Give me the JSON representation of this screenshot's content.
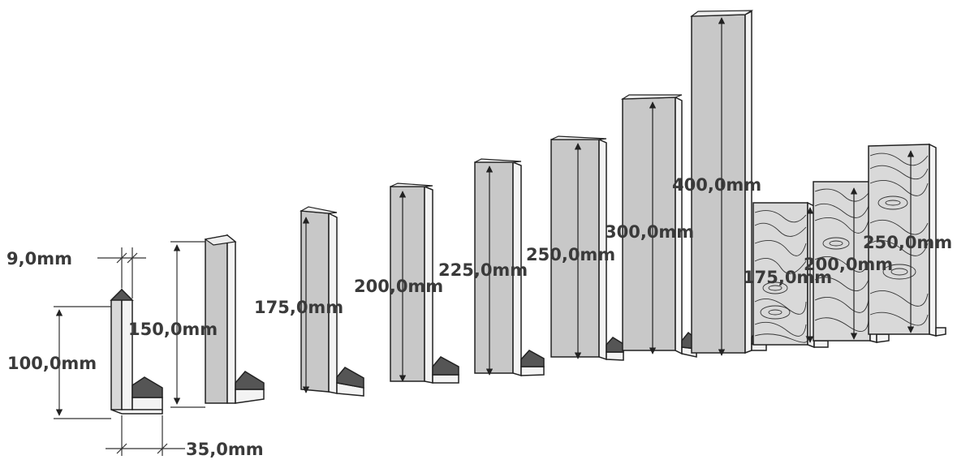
{
  "dimensions": {
    "thickness": "9,0mm",
    "base_width": "35,0mm",
    "heights": [
      "100,0mm",
      "150,0mm",
      "175,0mm",
      "200,0mm",
      "225,0mm",
      "250,0mm",
      "300,0mm",
      "400,0mm"
    ],
    "wood_heights": [
      "175,0mm",
      "200,0mm",
      "250,0mm"
    ]
  },
  "colors": {
    "panel_fill": "#c8c8c8",
    "panel_edge": "#ffffff",
    "outline": "#222222",
    "foot_top": "#555555",
    "wood_fill": "#d9d9d9",
    "text": "#3a3a3a"
  }
}
